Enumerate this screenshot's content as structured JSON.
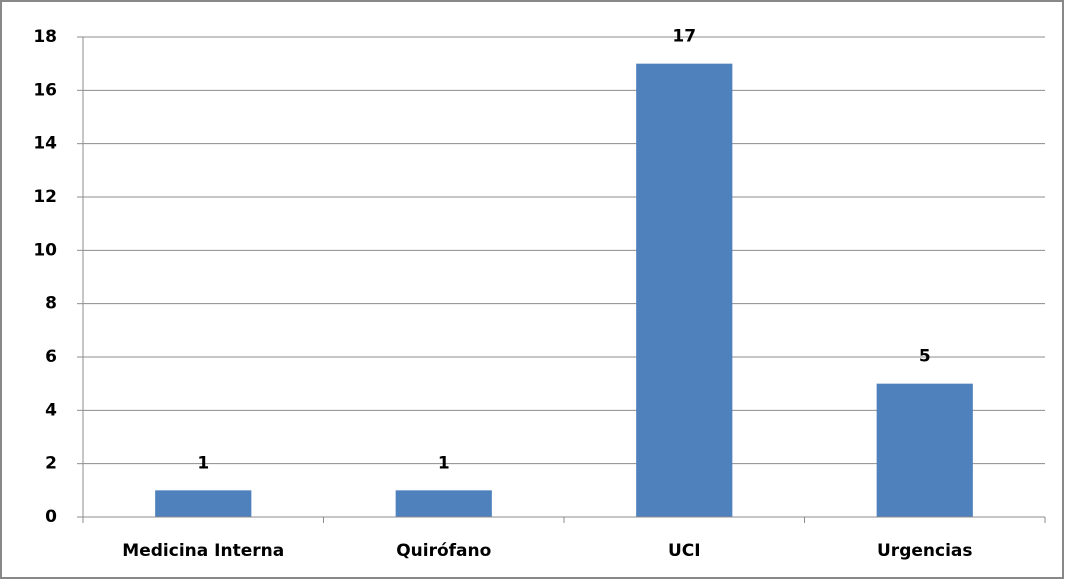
{
  "chart_data": {
    "type": "bar",
    "categories": [
      "Medicina Interna",
      "Quirófano",
      "UCI",
      "Urgencias"
    ],
    "values": [
      1,
      1,
      17,
      5
    ],
    "color": "#4f81bd",
    "ylim": [
      0,
      18
    ],
    "yticks": [
      0,
      2,
      4,
      6,
      8,
      10,
      12,
      14,
      16,
      18
    ],
    "grid": true
  }
}
